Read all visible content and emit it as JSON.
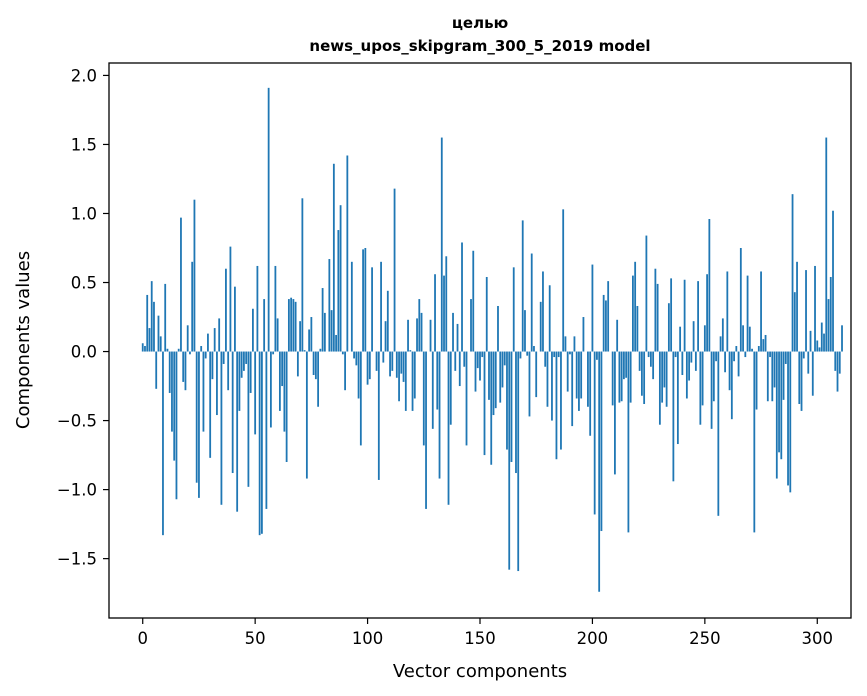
{
  "chart_data": {
    "type": "bar",
    "title": "целью",
    "subtitle": "news_upos_skipgram_300_5_2019 model",
    "xlabel": "Vector components",
    "ylabel": "Components values",
    "xlim": [
      -15,
      315
    ],
    "ylim": [
      -1.93,
      2.09
    ],
    "xticks": [
      0,
      50,
      100,
      150,
      200,
      250,
      300
    ],
    "yticks": [
      -1.5,
      -1.0,
      -0.5,
      0.0,
      0.5,
      1.0,
      1.5,
      2.0
    ],
    "xtick_labels": [
      "0",
      "50",
      "100",
      "150",
      "200",
      "250",
      "300"
    ],
    "ytick_labels": [
      "−1.5",
      "−1.0",
      "−0.5",
      "0.0",
      "0.5",
      "1.0",
      "1.5",
      "2.0"
    ],
    "bar_color": "#1f77b4",
    "grid": false,
    "values": [
      0.06,
      0.04,
      0.41,
      0.17,
      0.51,
      0.36,
      -0.27,
      0.26,
      0.11,
      -1.33,
      0.49,
      0.02,
      -0.3,
      -0.58,
      -0.79,
      -1.07,
      0.02,
      0.97,
      -0.22,
      -0.28,
      0.19,
      -0.02,
      0.65,
      1.1,
      -0.95,
      -1.06,
      0.04,
      -0.58,
      -0.05,
      0.13,
      -0.77,
      -0.2,
      0.17,
      -0.46,
      0.24,
      -1.11,
      -0.09,
      0.6,
      -0.28,
      0.76,
      -0.88,
      0.47,
      -1.16,
      -0.43,
      -0.19,
      -0.14,
      -0.09,
      -0.98,
      -0.3,
      0.31,
      -0.6,
      0.62,
      -1.33,
      -1.32,
      0.38,
      -1.14,
      1.91,
      -0.55,
      -0.02,
      0.62,
      0.24,
      -0.43,
      -0.25,
      -0.58,
      -0.8,
      0.38,
      0.39,
      0.38,
      0.36,
      -0.18,
      0.22,
      1.11,
      0.01,
      -0.92,
      0.16,
      0.25,
      -0.17,
      -0.2,
      -0.4,
      0.02,
      0.46,
      0.28,
      0.0,
      0.67,
      0.3,
      1.36,
      0.12,
      0.88,
      1.06,
      -0.02,
      -0.28,
      1.42,
      0.0,
      0.65,
      -0.05,
      -0.1,
      -0.34,
      -0.68,
      0.74,
      0.75,
      -0.24,
      -0.2,
      0.61,
      0.0,
      -0.14,
      -0.93,
      0.65,
      -0.08,
      0.22,
      0.44,
      -0.18,
      -0.14,
      1.18,
      -0.19,
      -0.36,
      -0.16,
      -0.22,
      -0.43,
      0.23,
      0.01,
      -0.43,
      -0.34,
      0.24,
      0.38,
      0.28,
      -0.68,
      -1.14,
      0.0,
      0.23,
      -0.56,
      0.56,
      -0.42,
      -0.92,
      1.55,
      0.55,
      0.69,
      -1.11,
      -0.53,
      0.28,
      -0.14,
      0.2,
      -0.25,
      0.79,
      -0.11,
      -0.68,
      0.0,
      0.38,
      0.73,
      -0.29,
      -0.12,
      -0.21,
      -0.04,
      -0.75,
      0.54,
      -0.35,
      -0.82,
      -0.46,
      -0.41,
      0.33,
      -0.37,
      -0.26,
      -0.1,
      -0.71,
      -1.58,
      -0.8,
      0.61,
      -0.88,
      -1.59,
      -0.05,
      0.95,
      0.3,
      -0.03,
      -0.47,
      0.71,
      0.04,
      -0.33,
      0.0,
      0.36,
      0.58,
      -0.11,
      -0.4,
      0.48,
      -0.5,
      -0.04,
      -0.78,
      -0.04,
      -0.71,
      1.03,
      0.11,
      -0.29,
      -0.02,
      -0.54,
      0.11,
      -0.34,
      -0.43,
      -0.34,
      0.25,
      0.0,
      -0.4,
      -0.61,
      0.63,
      -1.18,
      -0.06,
      -1.74,
      -1.3,
      0.41,
      0.37,
      0.51,
      0.0,
      -0.39,
      -0.89,
      0.23,
      -0.37,
      -0.36,
      -0.2,
      -0.19,
      -1.31,
      -0.37,
      0.55,
      0.65,
      0.33,
      -0.14,
      -0.32,
      -0.38,
      0.84,
      -0.04,
      -0.11,
      -0.2,
      0.6,
      0.49,
      -0.53,
      -0.37,
      -0.26,
      -0.4,
      0.35,
      0.53,
      -0.94,
      -0.04,
      -0.67,
      0.18,
      -0.17,
      0.52,
      -0.34,
      -0.21,
      -0.08,
      0.22,
      -0.14,
      0.51,
      -0.53,
      -0.39,
      0.19,
      0.56,
      0.96,
      -0.56,
      -0.36,
      -0.07,
      -1.19,
      0.11,
      0.24,
      -0.15,
      0.58,
      -0.28,
      -0.49,
      -0.07,
      0.04,
      -0.18,
      0.75,
      0.19,
      -0.04,
      0.55,
      0.18,
      0.02,
      -1.31,
      -0.42,
      0.04,
      0.58,
      0.09,
      0.12,
      -0.36,
      -0.04,
      -0.36,
      -0.26,
      -0.92,
      -0.73,
      -0.78,
      -0.35,
      -0.09,
      -0.97,
      -1.02,
      1.14,
      0.43,
      0.65,
      -0.38,
      -0.43,
      -0.05,
      0.59,
      -0.16,
      0.15,
      -0.32,
      0.62,
      0.08,
      0.03,
      0.21,
      0.13,
      1.55,
      0.38,
      0.54,
      1.02,
      -0.14,
      -0.29,
      -0.16,
      0.19
    ]
  }
}
